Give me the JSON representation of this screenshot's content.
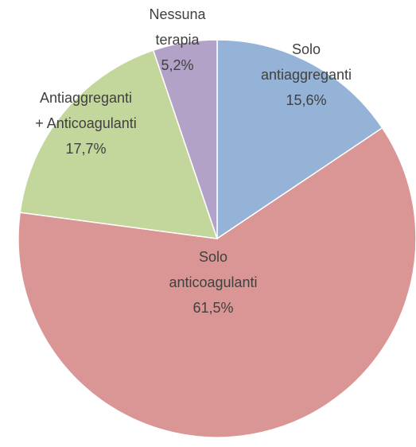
{
  "chart_data": {
    "type": "pie",
    "categories": [
      "Solo\nantiaggreganti",
      "Solo\nanticoagulanti",
      "Antiaggreganti\n+ Anticoagulanti",
      "Nessuna\nterapia"
    ],
    "values": [
      15.6,
      61.5,
      17.7,
      5.2
    ],
    "value_labels": [
      "15,6%",
      "61,5%",
      "17,7%",
      "5,2%"
    ],
    "colors": [
      "#95b3d7",
      "#d99694",
      "#c3d69b",
      "#b3a2c7"
    ]
  }
}
